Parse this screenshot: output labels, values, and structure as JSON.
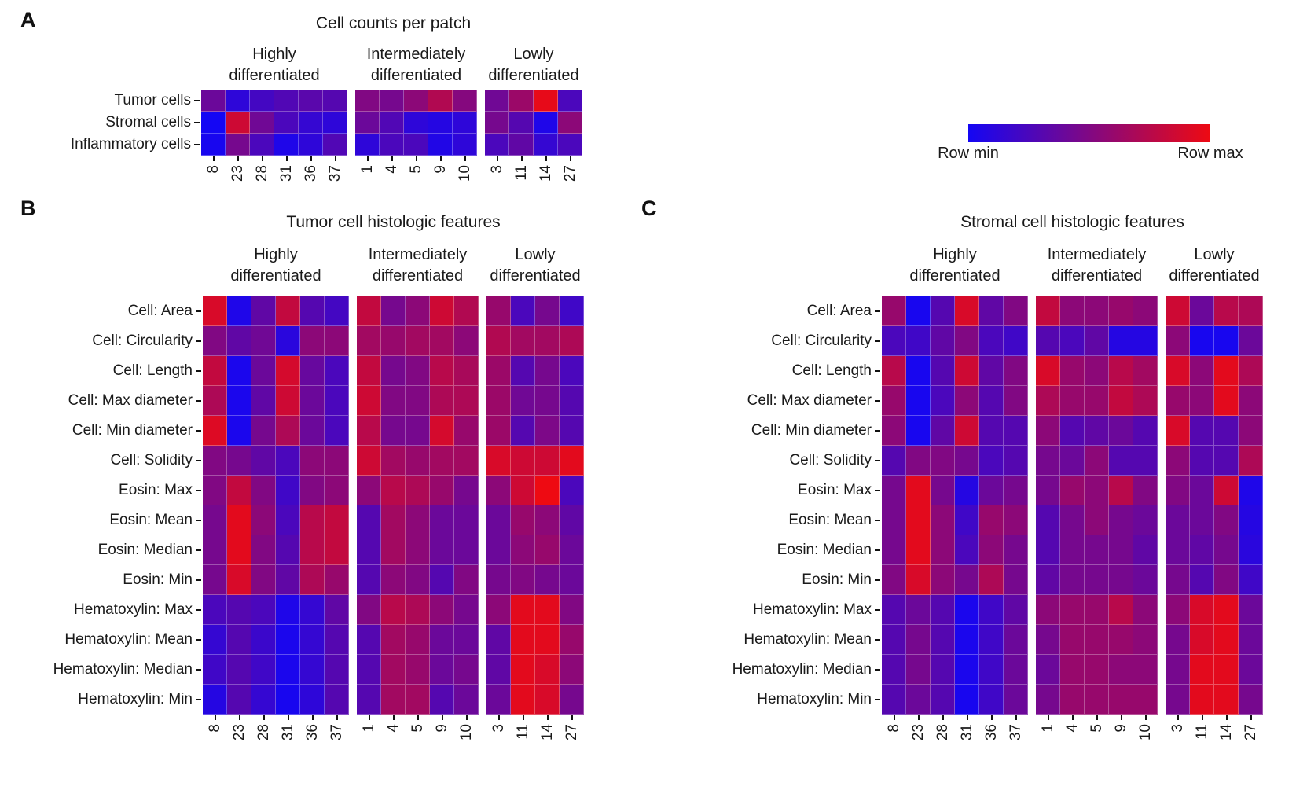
{
  "legend": {
    "min_label": "Row min",
    "max_label": "Row max",
    "min_color": "#1406f4",
    "max_color": "#ee0a12"
  },
  "chart_data": [
    {
      "panel": "A",
      "type": "heatmap",
      "title": "Cell counts per patch",
      "colormap": {
        "scale": "row-normalized",
        "min_label": "Row min",
        "max_label": "Row max",
        "min_color": "#1406f4",
        "max_color": "#ee0a12"
      },
      "column_groups": [
        {
          "label": "Highly differentiated",
          "columns": [
            "8",
            "23",
            "28",
            "31",
            "36",
            "37"
          ]
        },
        {
          "label": "Intermediately differentiated",
          "columns": [
            "1",
            "4",
            "5",
            "9",
            "10"
          ]
        },
        {
          "label": "Lowly differentiated",
          "columns": [
            "3",
            "11",
            "14",
            "27"
          ]
        }
      ],
      "rows": [
        "Tumor cells",
        "Stromal cells",
        "Inflammatory cells"
      ],
      "values": [
        [
          0.4,
          0.12,
          0.22,
          0.28,
          0.32,
          0.3,
          0.5,
          0.45,
          0.55,
          0.72,
          0.52,
          0.42,
          0.62,
          0.97,
          0.25
        ],
        [
          0.0,
          0.85,
          0.42,
          0.25,
          0.15,
          0.12,
          0.4,
          0.28,
          0.12,
          0.08,
          0.12,
          0.45,
          0.3,
          0.05,
          0.55
        ],
        [
          0.02,
          0.45,
          0.25,
          0.05,
          0.12,
          0.28,
          0.12,
          0.25,
          0.25,
          0.06,
          0.12,
          0.25,
          0.35,
          0.15,
          0.25
        ]
      ]
    },
    {
      "panel": "B",
      "type": "heatmap",
      "title": "Tumor cell histologic features",
      "colormap": {
        "scale": "row-normalized",
        "min_label": "Row min",
        "max_label": "Row max",
        "min_color": "#1406f4",
        "max_color": "#ee0a12"
      },
      "column_groups": [
        {
          "label": "Highly differentiated",
          "columns": [
            "8",
            "23",
            "28",
            "31",
            "36",
            "37"
          ]
        },
        {
          "label": "Intermediately differentiated",
          "columns": [
            "1",
            "4",
            "5",
            "9",
            "10"
          ]
        },
        {
          "label": "Lowly differentiated",
          "columns": [
            "3",
            "11",
            "14",
            "27"
          ]
        }
      ],
      "rows": [
        "Cell: Area",
        "Cell: Circularity",
        "Cell: Length",
        "Cell: Max diameter",
        "Cell: Min diameter",
        "Cell: Solidity",
        "Eosin: Max",
        "Eosin: Mean",
        "Eosin: Median",
        "Eosin: Min",
        "Hematoxylin: Max",
        "Hematoxylin: Mean",
        "Hematoxylin: Median",
        "Hematoxylin: Min"
      ],
      "values": [
        [
          0.9,
          0.05,
          0.35,
          0.8,
          0.3,
          0.22,
          0.8,
          0.45,
          0.55,
          0.85,
          0.72,
          0.6,
          0.25,
          0.45,
          0.2
        ],
        [
          0.5,
          0.35,
          0.42,
          0.1,
          0.55,
          0.55,
          0.65,
          0.6,
          0.65,
          0.65,
          0.55,
          0.72,
          0.65,
          0.65,
          0.7
        ],
        [
          0.8,
          0.03,
          0.4,
          0.88,
          0.38,
          0.25,
          0.8,
          0.45,
          0.5,
          0.75,
          0.68,
          0.62,
          0.3,
          0.45,
          0.25
        ],
        [
          0.7,
          0.03,
          0.35,
          0.85,
          0.4,
          0.25,
          0.85,
          0.5,
          0.5,
          0.7,
          0.7,
          0.62,
          0.42,
          0.45,
          0.3
        ],
        [
          0.92,
          0.03,
          0.45,
          0.7,
          0.4,
          0.25,
          0.75,
          0.45,
          0.45,
          0.88,
          0.6,
          0.62,
          0.3,
          0.48,
          0.3
        ],
        [
          0.5,
          0.45,
          0.35,
          0.25,
          0.55,
          0.55,
          0.85,
          0.65,
          0.6,
          0.65,
          0.65,
          0.9,
          0.85,
          0.85,
          0.95
        ],
        [
          0.5,
          0.8,
          0.5,
          0.2,
          0.5,
          0.55,
          0.55,
          0.75,
          0.7,
          0.6,
          0.45,
          0.55,
          0.85,
          1.0,
          0.25
        ],
        [
          0.45,
          0.95,
          0.55,
          0.25,
          0.75,
          0.8,
          0.3,
          0.65,
          0.55,
          0.4,
          0.4,
          0.4,
          0.6,
          0.55,
          0.35
        ],
        [
          0.45,
          0.95,
          0.5,
          0.3,
          0.75,
          0.8,
          0.3,
          0.65,
          0.55,
          0.4,
          0.4,
          0.4,
          0.55,
          0.6,
          0.4
        ],
        [
          0.45,
          0.9,
          0.5,
          0.35,
          0.7,
          0.6,
          0.3,
          0.55,
          0.5,
          0.3,
          0.5,
          0.45,
          0.5,
          0.45,
          0.4
        ],
        [
          0.25,
          0.3,
          0.25,
          0.05,
          0.15,
          0.35,
          0.5,
          0.75,
          0.7,
          0.55,
          0.45,
          0.55,
          0.95,
          0.95,
          0.5
        ],
        [
          0.15,
          0.3,
          0.18,
          0.03,
          0.15,
          0.3,
          0.3,
          0.65,
          0.6,
          0.4,
          0.4,
          0.35,
          0.95,
          0.95,
          0.6
        ],
        [
          0.2,
          0.3,
          0.2,
          0.03,
          0.15,
          0.3,
          0.3,
          0.65,
          0.6,
          0.4,
          0.45,
          0.35,
          0.95,
          0.9,
          0.55
        ],
        [
          0.08,
          0.3,
          0.15,
          0.02,
          0.12,
          0.3,
          0.3,
          0.65,
          0.65,
          0.3,
          0.4,
          0.4,
          0.95,
          0.9,
          0.45
        ]
      ]
    },
    {
      "panel": "C",
      "type": "heatmap",
      "title": "Stromal cell histologic features",
      "colormap": {
        "scale": "row-normalized",
        "min_label": "Row min",
        "max_label": "Row max",
        "min_color": "#1406f4",
        "max_color": "#ee0a12"
      },
      "column_groups": [
        {
          "label": "Highly differentiated",
          "columns": [
            "8",
            "23",
            "28",
            "31",
            "36",
            "37"
          ]
        },
        {
          "label": "Intermediately differentiated",
          "columns": [
            "1",
            "4",
            "5",
            "9",
            "10"
          ]
        },
        {
          "label": "Lowly differentiated",
          "columns": [
            "3",
            "11",
            "14",
            "27"
          ]
        }
      ],
      "rows": [
        "Cell: Area",
        "Cell: Circularity",
        "Cell: Length",
        "Cell: Max diameter",
        "Cell: Min diameter",
        "Cell: Solidity",
        "Eosin: Max",
        "Eosin: Mean",
        "Eosin: Median",
        "Eosin: Min",
        "Hematoxylin: Max",
        "Hematoxylin: Mean",
        "Hematoxylin: Median",
        "Hematoxylin: Min"
      ],
      "values": [
        [
          0.6,
          0.02,
          0.3,
          0.9,
          0.35,
          0.5,
          0.8,
          0.55,
          0.55,
          0.6,
          0.55,
          0.85,
          0.4,
          0.75,
          0.7
        ],
        [
          0.25,
          0.2,
          0.35,
          0.5,
          0.25,
          0.2,
          0.3,
          0.25,
          0.35,
          0.08,
          0.08,
          0.55,
          0.02,
          0.02,
          0.4
        ],
        [
          0.75,
          0.02,
          0.3,
          0.85,
          0.35,
          0.5,
          0.9,
          0.6,
          0.55,
          0.75,
          0.65,
          0.9,
          0.55,
          0.95,
          0.7
        ],
        [
          0.6,
          0.02,
          0.25,
          0.55,
          0.3,
          0.5,
          0.7,
          0.6,
          0.6,
          0.8,
          0.7,
          0.6,
          0.55,
          0.95,
          0.55
        ],
        [
          0.55,
          0.02,
          0.35,
          0.85,
          0.3,
          0.3,
          0.55,
          0.3,
          0.35,
          0.4,
          0.3,
          0.9,
          0.3,
          0.3,
          0.55
        ],
        [
          0.3,
          0.5,
          0.5,
          0.45,
          0.25,
          0.3,
          0.45,
          0.4,
          0.55,
          0.3,
          0.3,
          0.55,
          0.3,
          0.3,
          0.7
        ],
        [
          0.45,
          0.95,
          0.45,
          0.08,
          0.4,
          0.45,
          0.45,
          0.6,
          0.55,
          0.75,
          0.5,
          0.5,
          0.4,
          0.85,
          0.05
        ],
        [
          0.45,
          0.95,
          0.55,
          0.2,
          0.6,
          0.55,
          0.3,
          0.45,
          0.55,
          0.45,
          0.4,
          0.4,
          0.4,
          0.5,
          0.08
        ],
        [
          0.45,
          0.95,
          0.55,
          0.25,
          0.55,
          0.45,
          0.3,
          0.45,
          0.45,
          0.45,
          0.35,
          0.4,
          0.35,
          0.45,
          0.1
        ],
        [
          0.5,
          0.9,
          0.55,
          0.45,
          0.7,
          0.45,
          0.35,
          0.45,
          0.45,
          0.45,
          0.4,
          0.45,
          0.3,
          0.5,
          0.2
        ],
        [
          0.3,
          0.4,
          0.3,
          0.03,
          0.2,
          0.35,
          0.55,
          0.6,
          0.6,
          0.75,
          0.55,
          0.55,
          0.9,
          0.95,
          0.4
        ],
        [
          0.3,
          0.45,
          0.3,
          0.03,
          0.2,
          0.4,
          0.45,
          0.6,
          0.6,
          0.6,
          0.55,
          0.45,
          0.9,
          0.95,
          0.4
        ],
        [
          0.3,
          0.45,
          0.3,
          0.03,
          0.2,
          0.4,
          0.4,
          0.6,
          0.6,
          0.55,
          0.55,
          0.45,
          0.95,
          0.95,
          0.4
        ],
        [
          0.3,
          0.4,
          0.3,
          0.02,
          0.2,
          0.4,
          0.45,
          0.6,
          0.6,
          0.6,
          0.6,
          0.45,
          0.95,
          0.95,
          0.45
        ]
      ]
    }
  ]
}
